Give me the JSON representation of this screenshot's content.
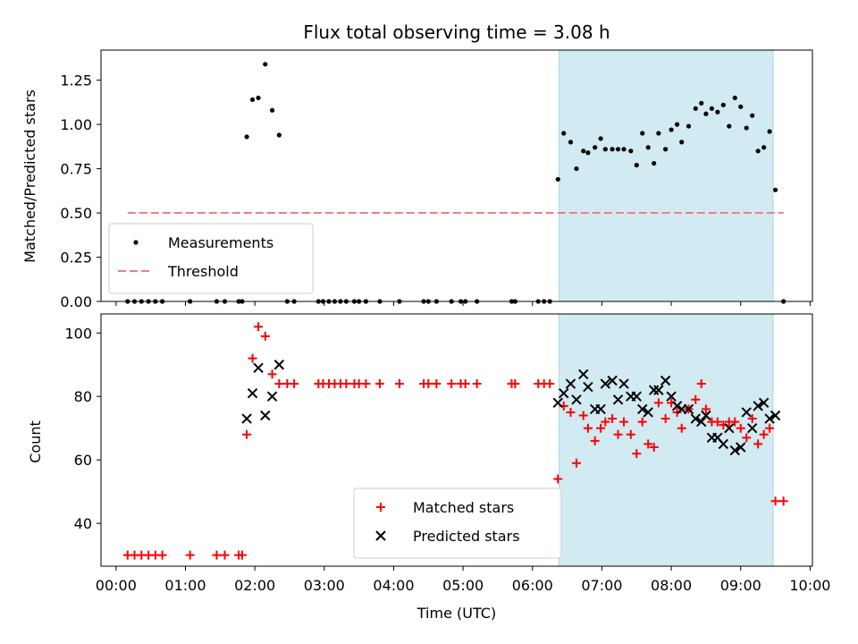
{
  "chart_data": [
    {
      "type": "scatter",
      "title": "Flux total observing time = 3.08 h",
      "ylabel": "Matched/Predicted stars",
      "xlabel": "",
      "ylim": [
        0,
        1.42
      ],
      "xlim": [
        "23:47",
        "10:02"
      ],
      "yticks": [
        0.0,
        0.25,
        0.5,
        0.75,
        1.0,
        1.25
      ],
      "ytick_labels": [
        "0.00",
        "0.25",
        "0.50",
        "0.75",
        "1.00",
        "1.25"
      ],
      "legend_placement": "lower-left",
      "shaded_interval": [
        "06:23",
        "09:28"
      ],
      "shade_color": "#add8e6",
      "series": [
        {
          "name": "Measurements",
          "marker": "dot",
          "color": "#000000",
          "points": [
            [
              "00:10",
              0
            ],
            [
              "00:16",
              0
            ],
            [
              "00:22",
              0
            ],
            [
              "00:28",
              0
            ],
            [
              "00:34",
              0
            ],
            [
              "00:40",
              0
            ],
            [
              "01:04",
              0
            ],
            [
              "01:27",
              0
            ],
            [
              "01:34",
              0
            ],
            [
              "01:46",
              0
            ],
            [
              "01:49",
              0
            ],
            [
              "01:53",
              0.93
            ],
            [
              "01:58",
              1.14
            ],
            [
              "02:03",
              1.15
            ],
            [
              "02:09",
              1.34
            ],
            [
              "02:15",
              1.08
            ],
            [
              "02:21",
              0.94
            ],
            [
              "02:28",
              0
            ],
            [
              "02:34",
              0
            ],
            [
              "02:55",
              0
            ],
            [
              "02:59",
              0
            ],
            [
              "03:04",
              0
            ],
            [
              "03:09",
              0
            ],
            [
              "03:14",
              0
            ],
            [
              "03:19",
              0
            ],
            [
              "03:26",
              0
            ],
            [
              "03:30",
              0
            ],
            [
              "03:36",
              0
            ],
            [
              "03:48",
              0
            ],
            [
              "04:05",
              0
            ],
            [
              "04:26",
              0
            ],
            [
              "04:30",
              0
            ],
            [
              "04:37",
              0
            ],
            [
              "04:50",
              0
            ],
            [
              "04:58",
              0
            ],
            [
              "05:02",
              0
            ],
            [
              "05:12",
              0
            ],
            [
              "05:42",
              0
            ],
            [
              "05:45",
              0
            ],
            [
              "06:05",
              0
            ],
            [
              "06:10",
              0
            ],
            [
              "06:15",
              0
            ],
            [
              "06:22",
              0.69
            ],
            [
              "06:27",
              0.95
            ],
            [
              "06:33",
              0.9
            ],
            [
              "06:38",
              0.75
            ],
            [
              "06:44",
              0.85
            ],
            [
              "06:48",
              0.84
            ],
            [
              "06:54",
              0.87
            ],
            [
              "06:59",
              0.92
            ],
            [
              "07:03",
              0.86
            ],
            [
              "07:09",
              0.86
            ],
            [
              "07:14",
              0.86
            ],
            [
              "07:19",
              0.86
            ],
            [
              "07:25",
              0.85
            ],
            [
              "07:30",
              0.77
            ],
            [
              "07:35",
              0.95
            ],
            [
              "07:40",
              0.87
            ],
            [
              "07:45",
              0.78
            ],
            [
              "07:49",
              0.95
            ],
            [
              "07:55",
              0.86
            ],
            [
              "08:00",
              0.97
            ],
            [
              "08:05",
              1.0
            ],
            [
              "08:09",
              0.9
            ],
            [
              "08:15",
              0.99
            ],
            [
              "08:21",
              1.09
            ],
            [
              "08:26",
              1.12
            ],
            [
              "08:30",
              1.06
            ],
            [
              "08:35",
              1.09
            ],
            [
              "08:40",
              1.07
            ],
            [
              "08:45",
              1.11
            ],
            [
              "08:50",
              0.99
            ],
            [
              "08:55",
              1.15
            ],
            [
              "09:00",
              1.1
            ],
            [
              "09:05",
              0.98
            ],
            [
              "09:10",
              1.05
            ],
            [
              "09:15",
              0.85
            ],
            [
              "09:20",
              0.87
            ],
            [
              "09:25",
              0.96
            ],
            [
              "09:30",
              0.63
            ],
            [
              "09:37",
              0
            ]
          ]
        },
        {
          "name": "Threshold",
          "marker": "dashed-line",
          "color": "#f08080",
          "points": [
            [
              "00:10",
              0.5
            ],
            [
              "09:37",
              0.5
            ]
          ]
        }
      ]
    },
    {
      "type": "scatter",
      "title": "",
      "ylabel": "Count",
      "xlabel": "Time (UTC)",
      "ylim": [
        26.5,
        106
      ],
      "xlim": [
        "23:47",
        "10:02"
      ],
      "yticks": [
        40,
        60,
        80,
        100
      ],
      "ytick_labels": [
        "40",
        "60",
        "80",
        "100"
      ],
      "xtick_labels": [
        "00:00",
        "01:00",
        "02:00",
        "03:00",
        "04:00",
        "05:00",
        "06:00",
        "07:00",
        "08:00",
        "09:00",
        "10:00"
      ],
      "legend_placement": "lower-center",
      "shaded_interval": [
        "06:23",
        "09:28"
      ],
      "shade_color": "#add8e6",
      "series": [
        {
          "name": "Matched stars",
          "marker": "plus",
          "color": "#ff0000",
          "points": [
            [
              "00:10",
              30
            ],
            [
              "00:16",
              30
            ],
            [
              "00:22",
              30
            ],
            [
              "00:28",
              30
            ],
            [
              "00:34",
              30
            ],
            [
              "00:40",
              30
            ],
            [
              "01:04",
              30
            ],
            [
              "01:27",
              30
            ],
            [
              "01:34",
              30
            ],
            [
              "01:46",
              30
            ],
            [
              "01:49",
              30
            ],
            [
              "01:53",
              68
            ],
            [
              "01:58",
              92
            ],
            [
              "02:03",
              102
            ],
            [
              "02:09",
              99
            ],
            [
              "02:15",
              87
            ],
            [
              "02:21",
              84
            ],
            [
              "02:28",
              84
            ],
            [
              "02:34",
              84
            ],
            [
              "02:55",
              84
            ],
            [
              "02:59",
              84
            ],
            [
              "03:04",
              84
            ],
            [
              "03:09",
              84
            ],
            [
              "03:14",
              84
            ],
            [
              "03:19",
              84
            ],
            [
              "03:26",
              84
            ],
            [
              "03:30",
              84
            ],
            [
              "03:36",
              84
            ],
            [
              "03:48",
              84
            ],
            [
              "04:05",
              84
            ],
            [
              "04:26",
              84
            ],
            [
              "04:30",
              84
            ],
            [
              "04:37",
              84
            ],
            [
              "04:50",
              84
            ],
            [
              "04:58",
              84
            ],
            [
              "05:02",
              84
            ],
            [
              "05:12",
              84
            ],
            [
              "05:42",
              84
            ],
            [
              "05:45",
              84
            ],
            [
              "06:05",
              84
            ],
            [
              "06:10",
              84
            ],
            [
              "06:15",
              84
            ],
            [
              "06:22",
              54
            ],
            [
              "06:27",
              77
            ],
            [
              "06:33",
              75
            ],
            [
              "06:38",
              59
            ],
            [
              "06:44",
              74
            ],
            [
              "06:48",
              70
            ],
            [
              "06:54",
              66
            ],
            [
              "06:59",
              70
            ],
            [
              "07:03",
              72
            ],
            [
              "07:09",
              73
            ],
            [
              "07:14",
              68
            ],
            [
              "07:19",
              72
            ],
            [
              "07:25",
              68
            ],
            [
              "07:30",
              62
            ],
            [
              "07:35",
              72
            ],
            [
              "07:40",
              65
            ],
            [
              "07:45",
              64
            ],
            [
              "07:49",
              78
            ],
            [
              "07:55",
              73
            ],
            [
              "08:00",
              78
            ],
            [
              "08:05",
              75
            ],
            [
              "08:09",
              70
            ],
            [
              "08:15",
              76
            ],
            [
              "08:21",
              79
            ],
            [
              "08:26",
              84
            ],
            [
              "08:30",
              76
            ],
            [
              "08:35",
              72
            ],
            [
              "08:40",
              72
            ],
            [
              "08:45",
              71
            ],
            [
              "08:50",
              72
            ],
            [
              "08:55",
              72
            ],
            [
              "09:00",
              70
            ],
            [
              "09:05",
              67
            ],
            [
              "09:10",
              73
            ],
            [
              "09:15",
              65
            ],
            [
              "09:20",
              68
            ],
            [
              "09:25",
              70
            ],
            [
              "09:30",
              47
            ],
            [
              "09:37",
              47
            ]
          ]
        },
        {
          "name": "Predicted stars",
          "marker": "x",
          "color": "#000000",
          "points": [
            [
              "01:53",
              73
            ],
            [
              "01:58",
              81
            ],
            [
              "02:03",
              89
            ],
            [
              "02:09",
              74
            ],
            [
              "02:15",
              80
            ],
            [
              "02:21",
              90
            ],
            [
              "06:22",
              78
            ],
            [
              "06:27",
              81
            ],
            [
              "06:33",
              84
            ],
            [
              "06:38",
              79
            ],
            [
              "06:44",
              87
            ],
            [
              "06:48",
              83
            ],
            [
              "06:54",
              76
            ],
            [
              "06:59",
              76
            ],
            [
              "07:03",
              84
            ],
            [
              "07:09",
              85
            ],
            [
              "07:14",
              79
            ],
            [
              "07:19",
              84
            ],
            [
              "07:25",
              80
            ],
            [
              "07:30",
              80
            ],
            [
              "07:35",
              76
            ],
            [
              "07:40",
              75
            ],
            [
              "07:45",
              82
            ],
            [
              "07:49",
              82
            ],
            [
              "07:55",
              85
            ],
            [
              "08:00",
              80
            ],
            [
              "08:05",
              77
            ],
            [
              "08:09",
              76
            ],
            [
              "08:15",
              76
            ],
            [
              "08:21",
              73
            ],
            [
              "08:26",
              72
            ],
            [
              "08:30",
              74
            ],
            [
              "08:35",
              67
            ],
            [
              "08:40",
              67
            ],
            [
              "08:45",
              65
            ],
            [
              "08:50",
              70
            ],
            [
              "08:55",
              63
            ],
            [
              "09:00",
              64
            ],
            [
              "09:05",
              75
            ],
            [
              "09:10",
              70
            ],
            [
              "09:15",
              77
            ],
            [
              "09:20",
              78
            ],
            [
              "09:25",
              73
            ],
            [
              "09:30",
              74
            ]
          ]
        }
      ]
    }
  ]
}
